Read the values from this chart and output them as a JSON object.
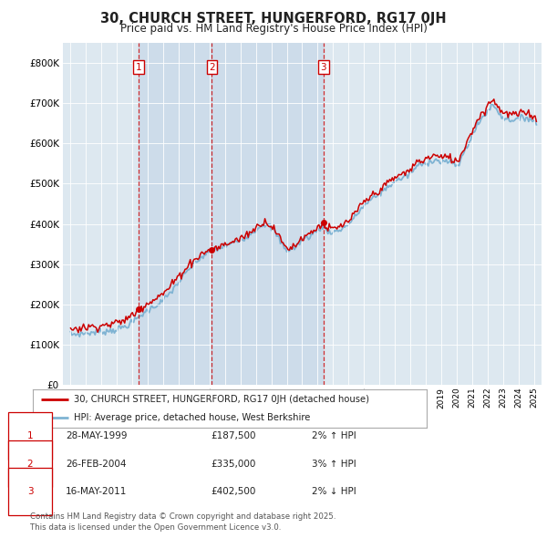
{
  "title": "30, CHURCH STREET, HUNGERFORD, RG17 0JH",
  "subtitle": "Price paid vs. HM Land Registry's House Price Index (HPI)",
  "legend_label_red": "30, CHURCH STREET, HUNGERFORD, RG17 0JH (detached house)",
  "legend_label_blue": "HPI: Average price, detached house, West Berkshire",
  "sales": [
    {
      "num": 1,
      "date": "28-MAY-1999",
      "price": 187500,
      "x": 1999.4
    },
    {
      "num": 2,
      "date": "26-FEB-2004",
      "price": 335000,
      "x": 2004.15
    },
    {
      "num": 3,
      "date": "16-MAY-2011",
      "price": 402500,
      "x": 2011.37
    }
  ],
  "sale_labels": [
    {
      "num": 1,
      "date": "28-MAY-1999",
      "price": "£187,500",
      "pct": "2%",
      "dir": "↑"
    },
    {
      "num": 2,
      "date": "26-FEB-2004",
      "price": "£335,000",
      "pct": "3%",
      "dir": "↑"
    },
    {
      "num": 3,
      "date": "16-MAY-2011",
      "price": "£402,500",
      "pct": "2%",
      "dir": "↓"
    }
  ],
  "footer": "Contains HM Land Registry data © Crown copyright and database right 2025.\nThis data is licensed under the Open Government Licence v3.0.",
  "ylim": [
    0,
    850000
  ],
  "yticks": [
    0,
    100000,
    200000,
    300000,
    400000,
    500000,
    600000,
    700000,
    800000
  ],
  "xlim": [
    1994.5,
    2025.5
  ],
  "bg_color": "#ffffff",
  "plot_bg_color": "#dde8f0",
  "grid_color": "#ffffff",
  "red_color": "#cc0000",
  "blue_color": "#7fb3d3",
  "shade_color": "#cddcea"
}
